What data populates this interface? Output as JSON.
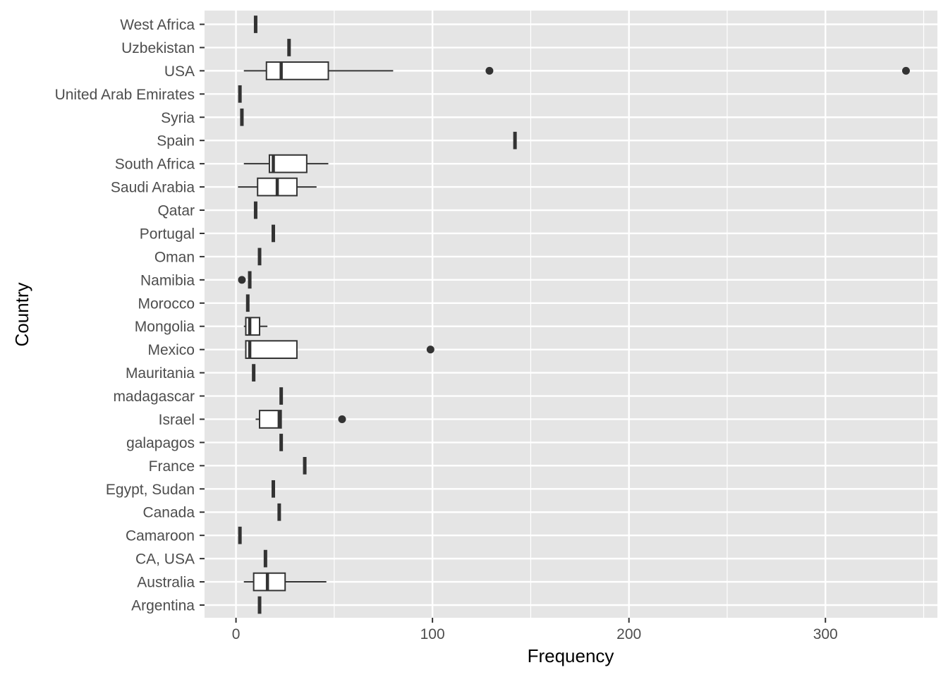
{
  "chart_data": {
    "type": "boxplot",
    "orientation": "horizontal",
    "xlabel": "Frequency",
    "ylabel": "Country",
    "xlim": [
      -16,
      357
    ],
    "x_ticks": [
      0,
      100,
      200,
      300
    ],
    "grid": true,
    "colors": {
      "panel": "#e5e5e5",
      "grid": "#ffffff",
      "box_line": "#333333",
      "box_fill": "#ffffff",
      "tick_text": "#4d4d4d",
      "axis_title": "#000000"
    },
    "categories": [
      "West Africa",
      "Uzbekistan",
      "USA",
      "United Arab Emirates",
      "Syria",
      "Spain",
      "South Africa",
      "Saudi Arabia",
      "Qatar",
      "Portugal",
      "Oman",
      "Namibia",
      "Morocco",
      "Mongolia",
      "Mexico",
      "Mauritania",
      "madagascar",
      "Israel",
      "galapagos",
      "France",
      "Egypt, Sudan",
      "Canada",
      "Camaroon",
      "CA, USA",
      "Australia",
      "Argentina"
    ],
    "boxes": [
      {
        "country": "West Africa",
        "min": 10,
        "q1": 10,
        "median": 10,
        "q3": 10,
        "max": 10,
        "outliers": []
      },
      {
        "country": "Uzbekistan",
        "min": 27,
        "q1": 27,
        "median": 27,
        "q3": 27,
        "max": 27,
        "outliers": []
      },
      {
        "country": "USA",
        "min": 4,
        "q1": 15.5,
        "median": 23,
        "q3": 47,
        "max": 80,
        "outliers": [
          129,
          341
        ]
      },
      {
        "country": "United Arab Emirates",
        "min": 2,
        "q1": 2,
        "median": 2,
        "q3": 2,
        "max": 2,
        "outliers": []
      },
      {
        "country": "Syria",
        "min": 3,
        "q1": 3,
        "median": 3,
        "q3": 3,
        "max": 3,
        "outliers": []
      },
      {
        "country": "Spain",
        "min": 142,
        "q1": 142,
        "median": 142,
        "q3": 142,
        "max": 142,
        "outliers": []
      },
      {
        "country": "South Africa",
        "min": 4,
        "q1": 17,
        "median": 19,
        "q3": 36,
        "max": 47,
        "outliers": []
      },
      {
        "country": "Saudi Arabia",
        "min": 1,
        "q1": 11,
        "median": 21,
        "q3": 31,
        "max": 41,
        "outliers": []
      },
      {
        "country": "Qatar",
        "min": 10,
        "q1": 10,
        "median": 10,
        "q3": 10,
        "max": 10,
        "outliers": []
      },
      {
        "country": "Portugal",
        "min": 19,
        "q1": 19,
        "median": 19,
        "q3": 19,
        "max": 19,
        "outliers": []
      },
      {
        "country": "Oman",
        "min": 12,
        "q1": 12,
        "median": 12,
        "q3": 12,
        "max": 12,
        "outliers": []
      },
      {
        "country": "Namibia",
        "min": 7,
        "q1": 7,
        "median": 7,
        "q3": 7,
        "max": 7,
        "outliers": [
          3
        ]
      },
      {
        "country": "Morocco",
        "min": 6,
        "q1": 6,
        "median": 6,
        "q3": 6,
        "max": 6,
        "outliers": []
      },
      {
        "country": "Mongolia",
        "min": 4,
        "q1": 5,
        "median": 7,
        "q3": 12,
        "max": 16,
        "outliers": []
      },
      {
        "country": "Mexico",
        "min": 5,
        "q1": 5,
        "median": 7,
        "q3": 31,
        "max": 31,
        "outliers": [
          99
        ]
      },
      {
        "country": "Mauritania",
        "min": 9,
        "q1": 9,
        "median": 9,
        "q3": 9,
        "max": 9,
        "outliers": []
      },
      {
        "country": "madagascar",
        "min": 23,
        "q1": 23,
        "median": 23,
        "q3": 23,
        "max": 23,
        "outliers": []
      },
      {
        "country": "Israel",
        "min": 10,
        "q1": 12,
        "median": 22,
        "q3": 23,
        "max": 23,
        "outliers": [
          54
        ]
      },
      {
        "country": "galapagos",
        "min": 23,
        "q1": 23,
        "median": 23,
        "q3": 23,
        "max": 23,
        "outliers": []
      },
      {
        "country": "France",
        "min": 35,
        "q1": 35,
        "median": 35,
        "q3": 35,
        "max": 35,
        "outliers": []
      },
      {
        "country": "Egypt, Sudan",
        "min": 19,
        "q1": 19,
        "median": 19,
        "q3": 19,
        "max": 19,
        "outliers": []
      },
      {
        "country": "Canada",
        "min": 22,
        "q1": 22,
        "median": 22,
        "q3": 22,
        "max": 22,
        "outliers": []
      },
      {
        "country": "Camaroon",
        "min": 2,
        "q1": 2,
        "median": 2,
        "q3": 2,
        "max": 2,
        "outliers": []
      },
      {
        "country": "CA, USA",
        "min": 15,
        "q1": 15,
        "median": 15,
        "q3": 15,
        "max": 15,
        "outliers": []
      },
      {
        "country": "Australia",
        "min": 4,
        "q1": 9,
        "median": 16,
        "q3": 25,
        "max": 46,
        "outliers": []
      },
      {
        "country": "Argentina",
        "min": 12,
        "q1": 12,
        "median": 12,
        "q3": 12,
        "max": 12,
        "outliers": []
      }
    ]
  }
}
